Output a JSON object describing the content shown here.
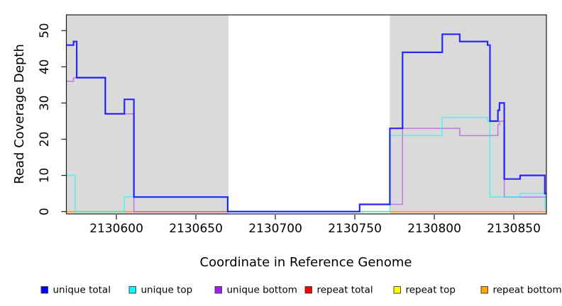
{
  "figure": {
    "background": "#ffffff",
    "plot_border_color": "#1a1a1a",
    "shaded_region_color": "#dadada"
  },
  "chart_data": {
    "type": "line",
    "subtype": "step-after",
    "title": "",
    "xlabel": "Coordinate in Reference Genome",
    "ylabel": "Read Coverage Depth",
    "xlim": [
      2130568.5,
      2130870.5
    ],
    "ylim": [
      -0.65,
      54.35
    ],
    "grid": false,
    "legend_position": "bottom",
    "x_ticks": [
      {
        "value": 2130600,
        "label": "2130600"
      },
      {
        "value": 2130650,
        "label": "2130650"
      },
      {
        "value": 2130700,
        "label": "2130700"
      },
      {
        "value": 2130750,
        "label": "2130750"
      },
      {
        "value": 2130800,
        "label": "2130800"
      },
      {
        "value": 2130850,
        "label": "2130850"
      }
    ],
    "y_ticks": [
      {
        "value": 0,
        "label": "0"
      },
      {
        "value": 10,
        "label": "10"
      },
      {
        "value": 20,
        "label": "20"
      },
      {
        "value": 30,
        "label": "30"
      },
      {
        "value": 40,
        "label": "40"
      },
      {
        "value": 50,
        "label": "50"
      }
    ],
    "shaded_regions": [
      {
        "x0": 2130568.5,
        "x1": 2130670.5
      },
      {
        "x0": 2130772.0,
        "x1": 2130870.5
      }
    ],
    "series": [
      {
        "name": "unique total",
        "color": "#0000ff",
        "alpha": 0.82,
        "width": 2.2,
        "points": [
          [
            2130568.5,
            46
          ],
          [
            2130573,
            47
          ],
          [
            2130575,
            37
          ],
          [
            2130593,
            27
          ],
          [
            2130605,
            31
          ],
          [
            2130611,
            4
          ],
          [
            2130670,
            0
          ],
          [
            2130753,
            2
          ],
          [
            2130772,
            23
          ],
          [
            2130780,
            44
          ],
          [
            2130805,
            49
          ],
          [
            2130816,
            47
          ],
          [
            2130833.5,
            46
          ],
          [
            2130835,
            25
          ],
          [
            2130840,
            28
          ],
          [
            2130841,
            30
          ],
          [
            2130844,
            9
          ],
          [
            2130854,
            10
          ],
          [
            2130869.5,
            5
          ]
        ]
      },
      {
        "name": "unique top",
        "color": "#00ffff",
        "alpha": 0.6,
        "width": 1.6,
        "points": [
          [
            2130568.5,
            10
          ],
          [
            2130574,
            0
          ],
          [
            2130605,
            4
          ],
          [
            2130670,
            0
          ],
          [
            2130772,
            21
          ],
          [
            2130805,
            26
          ],
          [
            2130833.5,
            25
          ],
          [
            2130835,
            4
          ],
          [
            2130854,
            5
          ],
          [
            2130869.5,
            1
          ]
        ]
      },
      {
        "name": "unique bottom",
        "color": "#a020f0",
        "alpha": 0.52,
        "width": 1.5,
        "points": [
          [
            2130568.5,
            36
          ],
          [
            2130573,
            37
          ],
          [
            2130593,
            27
          ],
          [
            2130611,
            0
          ],
          [
            2130753,
            2
          ],
          [
            2130780,
            23
          ],
          [
            2130816,
            21
          ],
          [
            2130840,
            24
          ],
          [
            2130841,
            25
          ],
          [
            2130844,
            4
          ]
        ]
      },
      {
        "name": "repeat total",
        "color": "#ff0000",
        "alpha": 0.5,
        "width": 1.5,
        "points": [
          [
            2130568.5,
            0
          ]
        ]
      },
      {
        "name": "repeat top",
        "color": "#ffff00",
        "alpha": 0.9,
        "width": 1.5,
        "points": [
          [
            2130568.5,
            0
          ]
        ]
      },
      {
        "name": "repeat bottom",
        "color": "#ffa500",
        "alpha": 0.92,
        "width": 1.7,
        "points": [
          [
            2130568.5,
            0
          ]
        ]
      }
    ],
    "draw_order": [
      "repeat top",
      "repeat total",
      "repeat bottom",
      "unique bottom",
      "unique top",
      "unique total"
    ]
  },
  "legend": {
    "items": [
      {
        "label": "unique total",
        "color": "#0000ff"
      },
      {
        "label": "unique top",
        "color": "#00ffff"
      },
      {
        "label": "unique bottom",
        "color": "#a020f0"
      },
      {
        "label": "repeat total",
        "color": "#ff0000"
      },
      {
        "label": "repeat top",
        "color": "#ffff00"
      },
      {
        "label": "repeat bottom",
        "color": "#ffa500"
      }
    ]
  }
}
